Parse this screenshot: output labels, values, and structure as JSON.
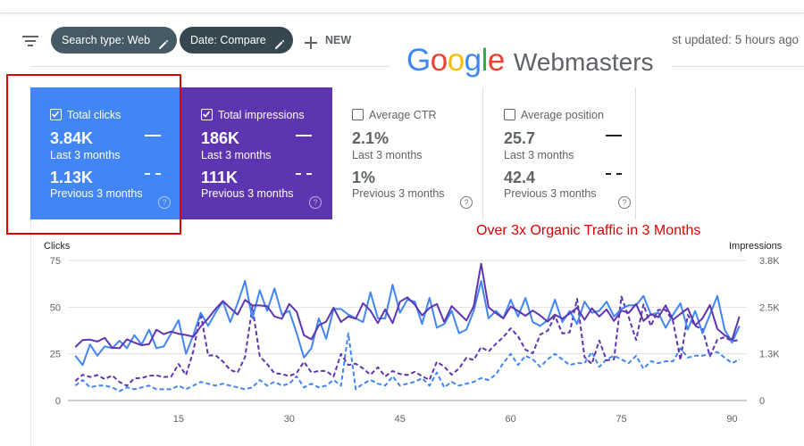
{
  "toolbar": {
    "chip_search_type": "Search type: Web",
    "chip_date": "Date: Compare",
    "new_label": "NEW",
    "last_updated": "st updated: 5 hours ago"
  },
  "logo": {
    "google": [
      "G",
      "o",
      "o",
      "g",
      "l",
      "e"
    ],
    "product": "Webmasters"
  },
  "cards": {
    "clicks": {
      "title": "Total clicks",
      "checked": true,
      "value": "3.84K",
      "period": "Last 3 months",
      "prev_value": "1.13K",
      "prev_period": "Previous 3 months"
    },
    "impressions": {
      "title": "Total impressions",
      "checked": true,
      "value": "186K",
      "period": "Last 3 months",
      "prev_value": "111K",
      "prev_period": "Previous 3 months"
    },
    "ctr": {
      "title": "Average CTR",
      "checked": false,
      "value": "2.1%",
      "period": "Last 3 months",
      "prev_value": "1%",
      "prev_period": "Previous 3 months"
    },
    "position": {
      "title": "Average position",
      "checked": false,
      "value": "25.7",
      "period": "Last 3 months",
      "prev_value": "42.4",
      "prev_period": "Previous 3 months"
    },
    "help_glyph": "?"
  },
  "annotation": "Over 3x Organic Traffic in 3 Months",
  "colors": {
    "clicks": "#4285f4",
    "impressions": "#5e35b1",
    "annotation": "#e00000"
  },
  "chart_data": {
    "type": "line",
    "left_axis_title": "Clicks",
    "right_axis_title": "Impressions",
    "left_ticks": [
      "0",
      "25",
      "50",
      "75"
    ],
    "right_ticks": [
      "0",
      "1.3K",
      "2.5K",
      "3.8K"
    ],
    "x_ticks": [
      "15",
      "30",
      "45",
      "60",
      "75",
      "90"
    ],
    "x": [
      1,
      2,
      3,
      4,
      5,
      6,
      7,
      8,
      9,
      10,
      11,
      12,
      13,
      14,
      15,
      16,
      17,
      18,
      19,
      20,
      21,
      22,
      23,
      24,
      25,
      26,
      27,
      28,
      29,
      30,
      31,
      32,
      33,
      34,
      35,
      36,
      37,
      38,
      39,
      40,
      41,
      42,
      43,
      44,
      45,
      46,
      47,
      48,
      49,
      50,
      51,
      52,
      53,
      54,
      55,
      56,
      57,
      58,
      59,
      60,
      61,
      62,
      63,
      64,
      65,
      66,
      67,
      68,
      69,
      70,
      71,
      72,
      73,
      74,
      75,
      76,
      77,
      78,
      79,
      80,
      81,
      82,
      83,
      84,
      85,
      86,
      87,
      88,
      89,
      90,
      91
    ],
    "ylim_left": [
      0,
      75
    ],
    "ylim_right": [
      0,
      3800
    ],
    "xlim": [
      0,
      92
    ],
    "legend": "none",
    "grid": "horizontal",
    "series": [
      {
        "name": "Total clicks",
        "axis": "left",
        "style": "solid",
        "color": "#4285f4",
        "values": [
          24,
          19,
          30,
          24,
          29,
          28,
          32,
          28,
          35,
          30,
          38,
          28,
          29,
          36,
          43,
          25,
          35,
          47,
          40,
          47,
          53,
          42,
          52,
          64,
          44,
          59,
          48,
          60,
          46,
          48,
          36,
          23,
          28,
          44,
          33,
          49,
          49,
          46,
          44,
          42,
          58,
          44,
          44,
          62,
          47,
          54,
          53,
          41,
          55,
          39,
          41,
          48,
          36,
          38,
          48,
          64,
          44,
          48,
          44,
          54,
          45,
          55,
          42,
          40,
          43,
          54,
          42,
          48,
          41,
          53,
          47,
          48,
          53,
          45,
          49,
          51,
          51,
          56,
          46,
          47,
          39,
          46,
          52,
          38,
          48,
          36,
          46,
          56,
          38,
          31,
          40
        ]
      },
      {
        "name": "Total impressions",
        "axis": "right",
        "style": "solid",
        "color": "#5e35b1",
        "values": [
          1450,
          1640,
          1650,
          1600,
          1700,
          1430,
          1420,
          1660,
          1570,
          1500,
          1530,
          1920,
          1800,
          1870,
          1810,
          1780,
          1730,
          2010,
          2230,
          2480,
          2700,
          2510,
          2330,
          2730,
          2580,
          2580,
          2560,
          2280,
          2220,
          2620,
          2410,
          1770,
          1660,
          2040,
          2140,
          2520,
          2130,
          2280,
          2220,
          2640,
          2440,
          2100,
          2470,
          2100,
          2680,
          2800,
          2600,
          2310,
          2510,
          2620,
          2130,
          2560,
          2370,
          2170,
          2560,
          3710,
          2530,
          2370,
          2230,
          2550,
          2430,
          2300,
          2440,
          2310,
          2140,
          2330,
          2220,
          2360,
          2520,
          2190,
          2500,
          2280,
          2470,
          2160,
          2440,
          2380,
          2620,
          2160,
          2340,
          2260,
          2580,
          2190,
          2350,
          2500,
          2040,
          2230,
          2590,
          1940,
          1770,
          1650,
          2280
        ]
      },
      {
        "name": "Total clicks (previous 3 months)",
        "axis": "left",
        "style": "dashed",
        "color": "#4285f4",
        "values": [
          8,
          11,
          7,
          8,
          8,
          7,
          5,
          7,
          6,
          7,
          8,
          6,
          6,
          6,
          8,
          6,
          8,
          10,
          9,
          8,
          9,
          8,
          7,
          6,
          7,
          11,
          8,
          10,
          8,
          9,
          13,
          7,
          9,
          7,
          8,
          11,
          8,
          36,
          6,
          9,
          11,
          9,
          8,
          13,
          8,
          9,
          10,
          12,
          8,
          15,
          7,
          10,
          8,
          9,
          10,
          12,
          11,
          14,
          20,
          25,
          19,
          24,
          22,
          18,
          22,
          25,
          22,
          19,
          20,
          20,
          26,
          18,
          22,
          24,
          22,
          20,
          24,
          17,
          21,
          20,
          21,
          21,
          28,
          23,
          24,
          24,
          25,
          26,
          23,
          20,
          22
        ]
      },
      {
        "name": "Total impressions (previous 3 months)",
        "axis": "right",
        "style": "dashed",
        "color": "#5e35b1",
        "values": [
          530,
          700,
          640,
          690,
          580,
          680,
          500,
          400,
          600,
          610,
          670,
          680,
          640,
          650,
          990,
          690,
          1340,
          2370,
          1220,
          1230,
          1060,
          830,
          760,
          1180,
          2550,
          1200,
          990,
          740,
          720,
          660,
          750,
          1050,
          760,
          800,
          800,
          650,
          1260,
          960,
          1000,
          870,
          700,
          900,
          650,
          800,
          720,
          690,
          780,
          660,
          560,
          1050,
          920,
          700,
          870,
          1160,
          1100,
          1450,
          1330,
          1540,
          1720,
          1960,
          1740,
          1380,
          1280,
          1790,
          1890,
          2290,
          1820,
          1850,
          2760,
          1180,
          990,
          1630,
          1090,
          1120,
          2820,
          2260,
          1640,
          2610,
          2020,
          2460,
          2460,
          2150,
          1100,
          2320,
          2020,
          1940,
          1200,
          1650,
          1720,
          1610,
          1640
        ]
      }
    ]
  }
}
